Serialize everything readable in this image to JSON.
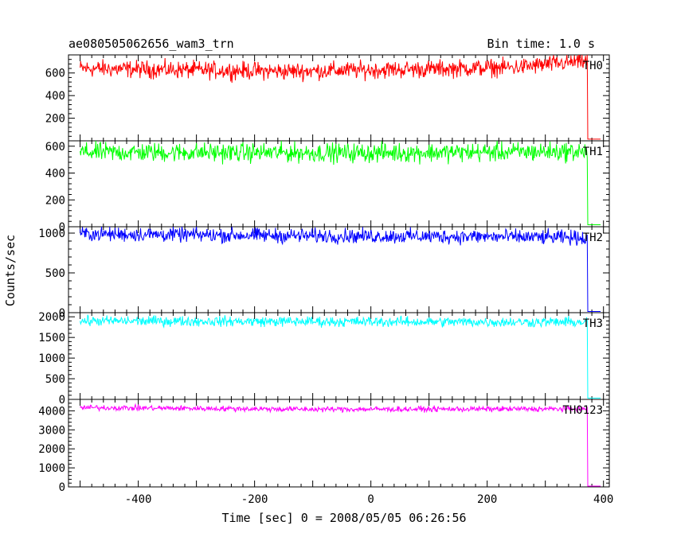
{
  "header": {
    "title": "ae080505062656_wam3_trn",
    "bin_time": "Bin time: 1.0 s"
  },
  "axes": {
    "xlabel": "Time [sec] 0 = 2008/05/05 06:26:56",
    "ylabel": "Counts/sec"
  },
  "chart_data": {
    "type": "line",
    "title": "ae080505062656_wam3_trn",
    "subtitle": "Bin time: 1.0 s",
    "xlabel": "Time [sec] 0 = 2008/05/05 06:26:56",
    "ylabel": "Counts/sec",
    "xlim": [
      -520,
      410
    ],
    "x_ticks": [
      -400,
      -200,
      0,
      200,
      400
    ],
    "x_start": -500,
    "x_drop": 372,
    "x_end": 395,
    "grid": false,
    "panels": [
      {
        "name": "TH0",
        "color": "#ff0000",
        "ylim": [
          0,
          760
        ],
        "y_ticks": [
          200,
          400,
          600
        ],
        "mean_trend": [
          [
            -500,
            640
          ],
          [
            -150,
            615
          ],
          [
            100,
            635
          ],
          [
            250,
            650
          ],
          [
            370,
            705
          ]
        ],
        "noise": 38,
        "after_drop": 15
      },
      {
        "name": "TH1",
        "color": "#00ff00",
        "ylim": [
          0,
          640
        ],
        "y_ticks": [
          0,
          200,
          400,
          600
        ],
        "mean_trend": [
          [
            -500,
            555
          ],
          [
            0,
            550
          ],
          [
            370,
            560
          ]
        ],
        "noise": 35,
        "after_drop": 15
      },
      {
        "name": "TH2",
        "color": "#0000ff",
        "ylim": [
          0,
          1080
        ],
        "y_ticks": [
          0,
          500,
          1000
        ],
        "mean_trend": [
          [
            -500,
            990
          ],
          [
            -100,
            965
          ],
          [
            200,
            955
          ],
          [
            370,
            940
          ]
        ],
        "noise": 45,
        "after_drop": 15
      },
      {
        "name": "TH3",
        "color": "#00ffff",
        "ylim": [
          0,
          2100
        ],
        "y_ticks": [
          0,
          500,
          1000,
          1500,
          2000
        ],
        "mean_trend": [
          [
            -500,
            1900
          ],
          [
            0,
            1880
          ],
          [
            370,
            1870
          ]
        ],
        "noise": 60,
        "after_drop": 30
      },
      {
        "name": "TH0123",
        "color": "#ff00ff",
        "ylim": [
          0,
          4600
        ],
        "y_ticks": [
          0,
          1000,
          2000,
          3000,
          4000
        ],
        "mean_trend": [
          [
            -500,
            4170
          ],
          [
            -100,
            4080
          ],
          [
            370,
            4100
          ]
        ],
        "noise": 70,
        "after_drop": 40
      }
    ]
  }
}
